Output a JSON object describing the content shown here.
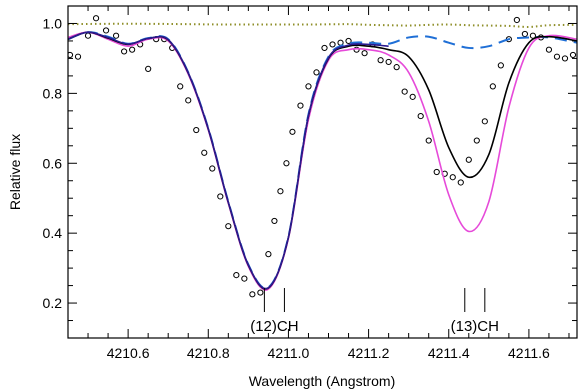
{
  "chart_data": {
    "type": "line",
    "title": "",
    "xlabel": "Wavelength (Angstrom)",
    "ylabel": "Relative flux",
    "xlim": [
      4210.45,
      4211.72
    ],
    "ylim": [
      0.1,
      1.05
    ],
    "x_ticks": [
      4210.6,
      4210.8,
      4211.0,
      4211.2,
      4211.4,
      4211.6
    ],
    "x_tick_labels": [
      "4210.6",
      "4210.8",
      "4211.0",
      "4211.2",
      "4211.4",
      "4211.6"
    ],
    "y_ticks": [
      0.2,
      0.4,
      0.6,
      0.8,
      1.0
    ],
    "y_tick_labels": [
      "0.2",
      "0.4",
      "0.6",
      "0.8",
      "1.0"
    ],
    "grid": false,
    "legend": "none",
    "annotations": [
      {
        "text": "(12)CH",
        "x": 4210.965,
        "markers": [
          4210.94,
          4210.99
        ]
      },
      {
        "text": "(13)CH",
        "x": 4211.465,
        "markers": [
          4211.44,
          4211.49
        ]
      }
    ],
    "series": [
      {
        "style": "points",
        "color": "#000000",
        "x": [
          4210.455,
          4210.475,
          4210.5,
          4210.52,
          4210.545,
          4210.57,
          4210.59,
          4210.61,
          4210.63,
          4210.65,
          4210.67,
          4210.69,
          4210.71,
          4210.73,
          4210.75,
          4210.77,
          4210.79,
          4210.81,
          4210.83,
          4210.85,
          4210.87,
          4210.89,
          4210.91,
          4210.93,
          4210.95,
          4210.965,
          4210.98,
          4210.995,
          4211.01,
          4211.03,
          4211.05,
          4211.07,
          4211.09,
          4211.11,
          4211.13,
          4211.15,
          4211.17,
          4211.19,
          4211.21,
          4211.23,
          4211.25,
          4211.27,
          4211.29,
          4211.31,
          4211.33,
          4211.35,
          4211.37,
          4211.39,
          4211.41,
          4211.43,
          4211.45,
          4211.47,
          4211.49,
          4211.51,
          4211.53,
          4211.55,
          4211.57,
          4211.59,
          4211.61,
          4211.63,
          4211.65,
          4211.67,
          4211.69,
          4211.71
        ],
        "y": [
          0.91,
          0.905,
          0.965,
          1.015,
          0.98,
          0.965,
          0.92,
          0.925,
          0.94,
          0.87,
          0.955,
          0.955,
          0.93,
          0.82,
          0.78,
          0.695,
          0.63,
          0.585,
          0.505,
          0.42,
          0.28,
          0.27,
          0.225,
          0.23,
          0.34,
          0.435,
          0.52,
          0.6,
          0.69,
          0.765,
          0.82,
          0.86,
          0.93,
          0.94,
          0.945,
          0.95,
          0.925,
          0.915,
          0.94,
          0.895,
          0.89,
          0.875,
          0.805,
          0.79,
          0.735,
          0.665,
          0.575,
          0.57,
          0.56,
          0.545,
          0.61,
          0.665,
          0.72,
          0.82,
          0.88,
          0.955,
          1.01,
          0.97,
          0.965,
          0.96,
          0.925,
          0.905,
          0.9,
          0.91
        ]
      },
      {
        "style": "dotted",
        "color": "#8f8f2a",
        "x": [
          4210.45,
          4210.55,
          4210.65,
          4210.75,
          4210.85,
          4210.95,
          4211.05,
          4211.15,
          4211.2,
          4211.25,
          4211.3,
          4211.35,
          4211.4,
          4211.45,
          4211.5,
          4211.55,
          4211.6,
          4211.65,
          4211.72
        ],
        "y": [
          0.998,
          0.999,
          0.999,
          0.998,
          0.997,
          0.997,
          0.997,
          0.998,
          0.996,
          0.995,
          0.994,
          0.996,
          0.997,
          0.995,
          0.994,
          0.993,
          0.99,
          0.995,
          0.996
        ]
      },
      {
        "style": "dashed",
        "color": "#1f6fd6",
        "x": [
          4210.45,
          4210.5,
          4210.55,
          4210.6,
          4210.65,
          4210.7,
          4210.75,
          4210.8,
          4210.85,
          4210.9,
          4210.95,
          4211.0,
          4211.05,
          4211.1,
          4211.15,
          4211.2,
          4211.25,
          4211.3,
          4211.35,
          4211.4,
          4211.45,
          4211.5,
          4211.55,
          4211.6,
          4211.65,
          4211.72
        ],
        "y": [
          0.955,
          0.975,
          0.962,
          0.942,
          0.958,
          0.955,
          0.86,
          0.7,
          0.49,
          0.31,
          0.245,
          0.39,
          0.74,
          0.905,
          0.942,
          0.945,
          0.942,
          0.96,
          0.962,
          0.945,
          0.93,
          0.935,
          0.955,
          0.96,
          0.96,
          0.945
        ]
      },
      {
        "style": "solid",
        "color": "#e64ad9",
        "x": [
          4210.45,
          4210.5,
          4210.55,
          4210.6,
          4210.65,
          4210.7,
          4210.75,
          4210.8,
          4210.85,
          4210.9,
          4210.95,
          4211.0,
          4211.05,
          4211.1,
          4211.15,
          4211.2,
          4211.25,
          4211.3,
          4211.35,
          4211.4,
          4211.45,
          4211.5,
          4211.55,
          4211.6,
          4211.65,
          4211.72
        ],
        "y": [
          0.96,
          0.975,
          0.955,
          0.935,
          0.955,
          0.95,
          0.855,
          0.695,
          0.485,
          0.305,
          0.24,
          0.385,
          0.725,
          0.895,
          0.925,
          0.925,
          0.91,
          0.86,
          0.72,
          0.51,
          0.405,
          0.49,
          0.76,
          0.93,
          0.965,
          0.955
        ]
      },
      {
        "style": "solid",
        "color": "#000000",
        "x": [
          4210.45,
          4210.5,
          4210.55,
          4210.6,
          4210.65,
          4210.7,
          4210.75,
          4210.8,
          4210.85,
          4210.9,
          4210.95,
          4211.0,
          4211.05,
          4211.1,
          4211.15,
          4211.2,
          4211.25,
          4211.3,
          4211.35,
          4211.4,
          4211.45,
          4211.5,
          4211.55,
          4211.6,
          4211.65,
          4211.72
        ],
        "y": [
          0.955,
          0.975,
          0.958,
          0.94,
          0.957,
          0.953,
          0.858,
          0.698,
          0.488,
          0.308,
          0.243,
          0.388,
          0.735,
          0.9,
          0.935,
          0.935,
          0.925,
          0.905,
          0.81,
          0.645,
          0.56,
          0.625,
          0.83,
          0.945,
          0.962,
          0.95
        ]
      },
      {
        "style": "solid",
        "color": "#2b1a8f",
        "x": [
          4210.45,
          4210.5,
          4210.55,
          4210.6,
          4210.65,
          4210.7,
          4210.75,
          4210.8,
          4210.85,
          4210.9,
          4210.95,
          4211.0,
          4211.05,
          4211.1,
          4211.15,
          4211.2,
          4211.25
        ],
        "y": [
          0.955,
          0.975,
          0.96,
          0.941,
          0.957,
          0.954,
          0.859,
          0.699,
          0.489,
          0.309,
          0.244,
          0.389,
          0.737,
          0.902,
          0.938,
          0.94,
          0.935
        ]
      }
    ]
  }
}
